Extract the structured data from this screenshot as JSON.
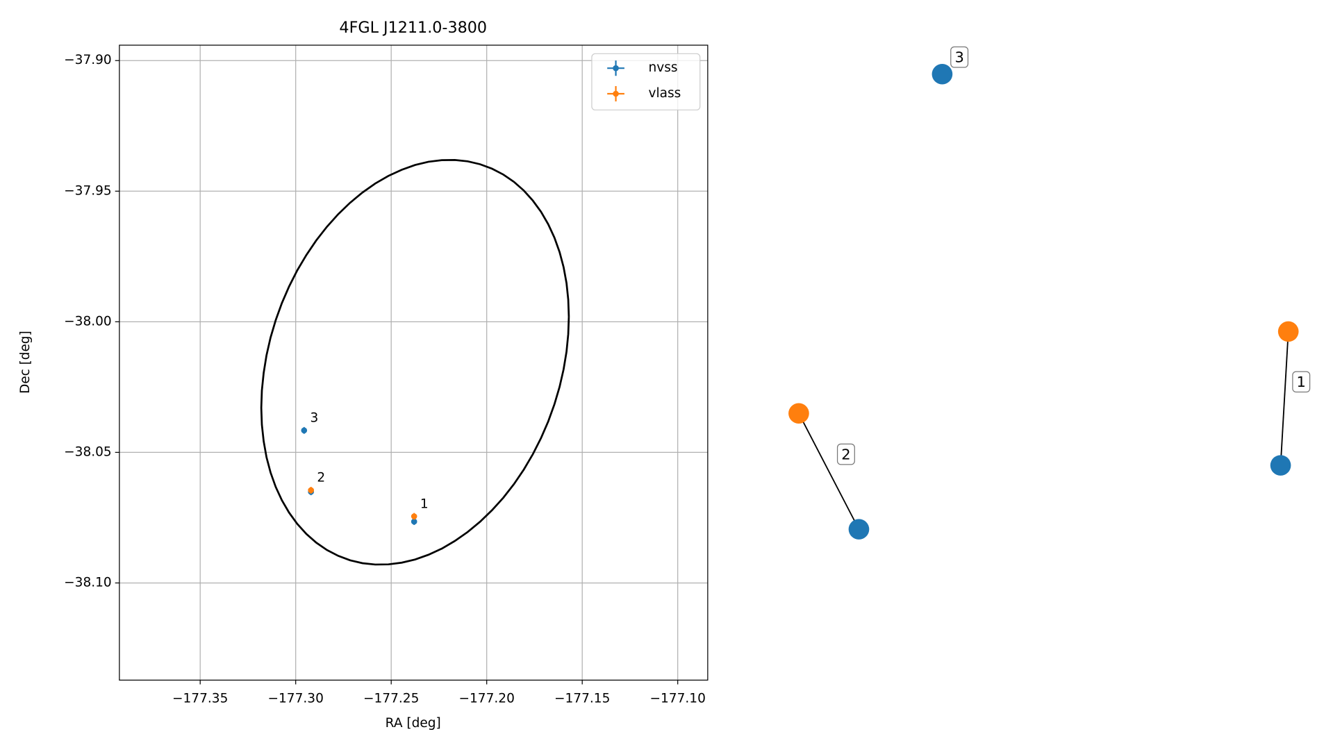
{
  "chart_data": {
    "type": "scatter",
    "title": "4FGL J1211.0-3800",
    "xlabel": "RA [deg]",
    "ylabel": "Dec [deg]",
    "xlim": [
      -177.3923,
      -177.0843
    ],
    "ylim": [
      -38.1372,
      -37.8941
    ],
    "xticks": [
      {
        "value": -177.35,
        "label": "−177.35"
      },
      {
        "value": -177.3,
        "label": "−177.30"
      },
      {
        "value": -177.25,
        "label": "−177.25"
      },
      {
        "value": -177.2,
        "label": "−177.20"
      },
      {
        "value": -177.15,
        "label": "−177.15"
      },
      {
        "value": -177.1,
        "label": "−177.10"
      }
    ],
    "yticks": [
      {
        "value": -37.9,
        "label": "−37.90"
      },
      {
        "value": -37.95,
        "label": "−37.95"
      },
      {
        "value": -38.0,
        "label": "−38.00"
      },
      {
        "value": -38.05,
        "label": "−38.05"
      },
      {
        "value": -38.1,
        "label": "−38.10"
      }
    ],
    "grid": true,
    "legend": "upper right",
    "series": [
      {
        "name": "nvss",
        "color": "#1f77b4",
        "x": [
          -177.2956,
          -177.292,
          -177.238
        ],
        "values": [
          -38.0416,
          -38.0651,
          -38.0765
        ]
      },
      {
        "name": "vlass",
        "color": "#ff7f0e",
        "x": [
          -177.292,
          -177.238
        ],
        "values": [
          -38.0645,
          -38.0745
        ]
      }
    ],
    "annotations": [
      {
        "text": "3",
        "x": -177.2956,
        "y": -38.0416
      },
      {
        "text": "2",
        "x": -177.292,
        "y": -38.0645
      },
      {
        "text": "1",
        "x": -177.238,
        "y": -38.0745
      }
    ],
    "ellipse": {
      "center": [
        -177.2375,
        -38.0155
      ],
      "radius": [
        0.0805,
        0.0775
      ],
      "phase": 13,
      "color": "#000000"
    }
  },
  "graph": {
    "nodes": [
      {
        "color": "#1f77b4"
      },
      {
        "color": "#ff7f0e"
      },
      {
        "color": "#1f77b4"
      },
      {
        "color": "#ff7f0e"
      },
      {
        "color": "#1f77b4"
      }
    ],
    "edge_labels": [
      "1",
      "2",
      "3"
    ]
  }
}
